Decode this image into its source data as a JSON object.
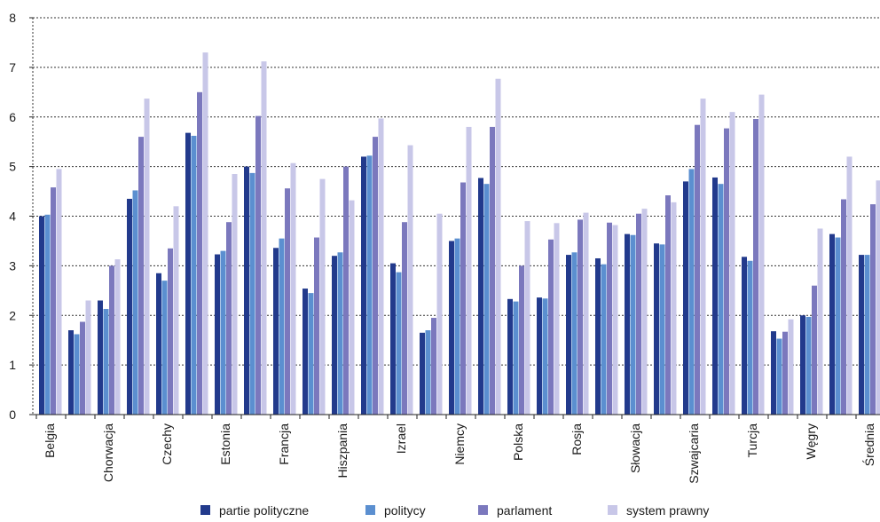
{
  "chart_data": {
    "type": "bar",
    "categories": [
      "Belgia",
      "",
      "Chorwacja",
      "",
      "Czechy",
      "",
      "Estonia",
      "",
      "Francja",
      "",
      "Hiszpania",
      "",
      "Izrael",
      "",
      "Niemcy",
      "",
      "Polska",
      "",
      "Rosja",
      "",
      "Słowacja",
      "",
      "Szwajcaria",
      "",
      "Turcja",
      "",
      "Węgry",
      "",
      "Średnia"
    ],
    "series": [
      {
        "name": "partie polityczne",
        "color": "#223a8c",
        "values": [
          4.0,
          1.7,
          2.3,
          4.35,
          2.85,
          5.68,
          3.23,
          5.0,
          3.36,
          2.54,
          3.2,
          5.2,
          3.05,
          1.65,
          3.5,
          4.77,
          2.33,
          2.36,
          3.22,
          3.15,
          3.64,
          3.45,
          4.7,
          4.78,
          3.18,
          1.68,
          2.0,
          3.64,
          3.22
        ]
      },
      {
        "name": "politycy",
        "color": "#5b8fd0",
        "values": [
          4.03,
          1.62,
          2.13,
          4.52,
          2.7,
          5.62,
          3.3,
          4.87,
          3.55,
          2.45,
          3.27,
          5.22,
          2.87,
          1.7,
          3.55,
          4.65,
          2.28,
          2.34,
          3.27,
          3.03,
          3.62,
          3.43,
          4.95,
          4.65,
          3.1,
          1.53,
          1.97,
          3.57,
          3.22
        ]
      },
      {
        "name": "parlament",
        "color": "#7b78bd",
        "values": [
          4.58,
          1.87,
          3.0,
          5.6,
          3.35,
          6.5,
          3.88,
          6.02,
          4.56,
          3.57,
          5.0,
          5.6,
          3.88,
          1.95,
          4.68,
          5.8,
          3.0,
          3.53,
          3.93,
          3.87,
          4.05,
          4.42,
          5.84,
          5.77,
          5.96,
          1.67,
          2.6,
          4.34,
          4.24
        ]
      },
      {
        "name": "system prawny",
        "color": "#c8c7e8",
        "values": [
          4.95,
          2.3,
          3.13,
          6.37,
          4.2,
          7.3,
          4.85,
          7.12,
          5.07,
          4.75,
          4.32,
          5.97,
          5.43,
          4.05,
          5.8,
          6.77,
          3.9,
          3.86,
          4.07,
          3.82,
          4.15,
          4.28,
          6.37,
          6.1,
          6.45,
          1.92,
          3.75,
          5.2,
          4.72
        ]
      }
    ],
    "ylim": [
      0,
      8
    ],
    "yticks": [
      "0",
      "1",
      "2",
      "3",
      "4",
      "5",
      "6",
      "7",
      "8"
    ],
    "grid": true,
    "legend_position": "bottom"
  }
}
